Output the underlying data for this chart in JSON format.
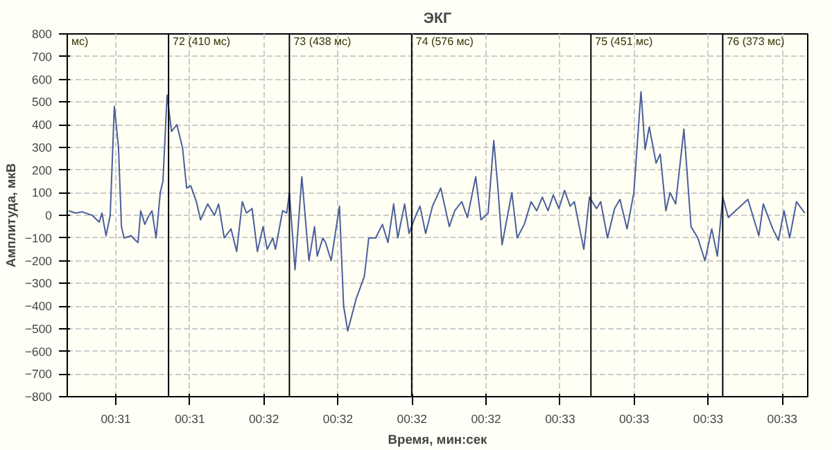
{
  "chart_data": {
    "type": "line",
    "title": "ЭКГ",
    "xlabel": "Время, мин:сек",
    "ylabel": "Амплитуда, мкВ",
    "xlim": [
      30.836,
      33.336
    ],
    "ylim": [
      -800,
      800
    ],
    "xticks": [
      {
        "value": 31.0,
        "label": "00:31"
      },
      {
        "value": 31.25,
        "label": "00:31"
      },
      {
        "value": 31.5,
        "label": "00:32"
      },
      {
        "value": 31.75,
        "label": "00:32"
      },
      {
        "value": 32.0,
        "label": "00:32"
      },
      {
        "value": 32.25,
        "label": "00:32"
      },
      {
        "value": 32.5,
        "label": "00:33"
      },
      {
        "value": 32.75,
        "label": "00:33"
      },
      {
        "value": 33.0,
        "label": "00:33"
      },
      {
        "value": 33.25,
        "label": "00:33"
      }
    ],
    "yticks": [
      -800,
      -700,
      -600,
      -500,
      -400,
      -300,
      -200,
      -100,
      0,
      100,
      200,
      300,
      400,
      500,
      600,
      700,
      800
    ],
    "grid": true,
    "marker": "none",
    "line_style": "solid",
    "ref_lines": [
      {
        "axis": "x",
        "value": 30.836,
        "label": "мс)"
      },
      {
        "axis": "x",
        "value": 31.178,
        "label": "72 (410 мс)"
      },
      {
        "axis": "x",
        "value": 31.586,
        "label": "73 (438 мс)"
      },
      {
        "axis": "x",
        "value": 31.999,
        "label": "74 (576 мс)"
      },
      {
        "axis": "x",
        "value": 32.604,
        "label": "75 (451 мс)"
      },
      {
        "axis": "x",
        "value": 33.049,
        "label": "76 (373 мс)"
      }
    ],
    "series": [
      {
        "color": "#4a5f9a",
        "x": [
          30.841,
          30.864,
          30.887,
          30.92,
          30.944,
          30.953,
          30.967,
          30.981,
          30.995,
          31.009,
          31.019,
          31.028,
          31.052,
          31.066,
          31.075,
          31.084,
          31.098,
          31.108,
          31.122,
          31.136,
          31.15,
          31.159,
          31.173,
          31.188,
          31.206,
          31.225,
          31.239,
          31.253,
          31.272,
          31.286,
          31.31,
          31.333,
          31.347,
          31.366,
          31.389,
          31.408,
          31.427,
          31.441,
          31.46,
          31.478,
          31.497,
          31.511,
          31.53,
          31.539,
          31.563,
          31.577,
          31.586,
          31.605,
          31.628,
          31.652,
          31.671,
          31.68,
          31.699,
          31.708,
          31.727,
          31.755,
          31.769,
          31.783,
          31.811,
          31.839,
          31.854,
          31.877,
          31.9,
          31.919,
          31.938,
          31.952,
          31.975,
          31.99,
          32.013,
          32.027,
          32.046,
          32.069,
          32.097,
          32.126,
          32.144,
          32.168,
          32.187,
          32.215,
          32.233,
          32.257,
          32.276,
          32.29,
          32.304,
          32.337,
          32.355,
          32.379,
          32.402,
          32.421,
          32.44,
          32.459,
          32.477,
          32.496,
          32.515,
          32.534,
          32.548,
          32.58,
          32.599,
          32.623,
          32.637,
          32.66,
          32.684,
          32.702,
          32.726,
          32.749,
          32.773,
          32.787,
          32.801,
          32.824,
          32.838,
          32.857,
          32.871,
          32.89,
          32.918,
          32.942,
          32.965,
          32.989,
          33.012,
          33.031,
          33.049,
          33.068,
          33.092,
          33.134,
          33.171,
          33.186,
          33.218,
          33.237,
          33.256,
          33.275,
          33.298,
          33.326
        ],
        "values": [
          20,
          10,
          15,
          0,
          -30,
          10,
          -90,
          0,
          480,
          300,
          -50,
          -100,
          -90,
          -110,
          -120,
          20,
          -40,
          -10,
          20,
          -100,
          100,
          150,
          530,
          370,
          400,
          300,
          120,
          130,
          60,
          -20,
          50,
          0,
          50,
          -100,
          -60,
          -160,
          60,
          10,
          30,
          -160,
          -50,
          -150,
          -100,
          -150,
          20,
          10,
          100,
          -240,
          170,
          -200,
          -50,
          -180,
          -100,
          -120,
          -200,
          40,
          -400,
          -510,
          -370,
          -270,
          -100,
          -100,
          -40,
          -120,
          50,
          -100,
          50,
          -80,
          0,
          40,
          -80,
          40,
          120,
          -50,
          20,
          60,
          -10,
          170,
          -20,
          10,
          330,
          120,
          -130,
          100,
          -100,
          -40,
          60,
          20,
          80,
          20,
          90,
          30,
          110,
          40,
          60,
          -150,
          80,
          30,
          60,
          -100,
          30,
          70,
          -60,
          100,
          545,
          290,
          390,
          230,
          270,
          20,
          100,
          50,
          380,
          -50,
          -100,
          -200,
          -60,
          -180,
          80,
          -10,
          20,
          70,
          -90,
          50,
          -60,
          -110,
          20,
          -100,
          60,
          10
        ]
      }
    ]
  }
}
